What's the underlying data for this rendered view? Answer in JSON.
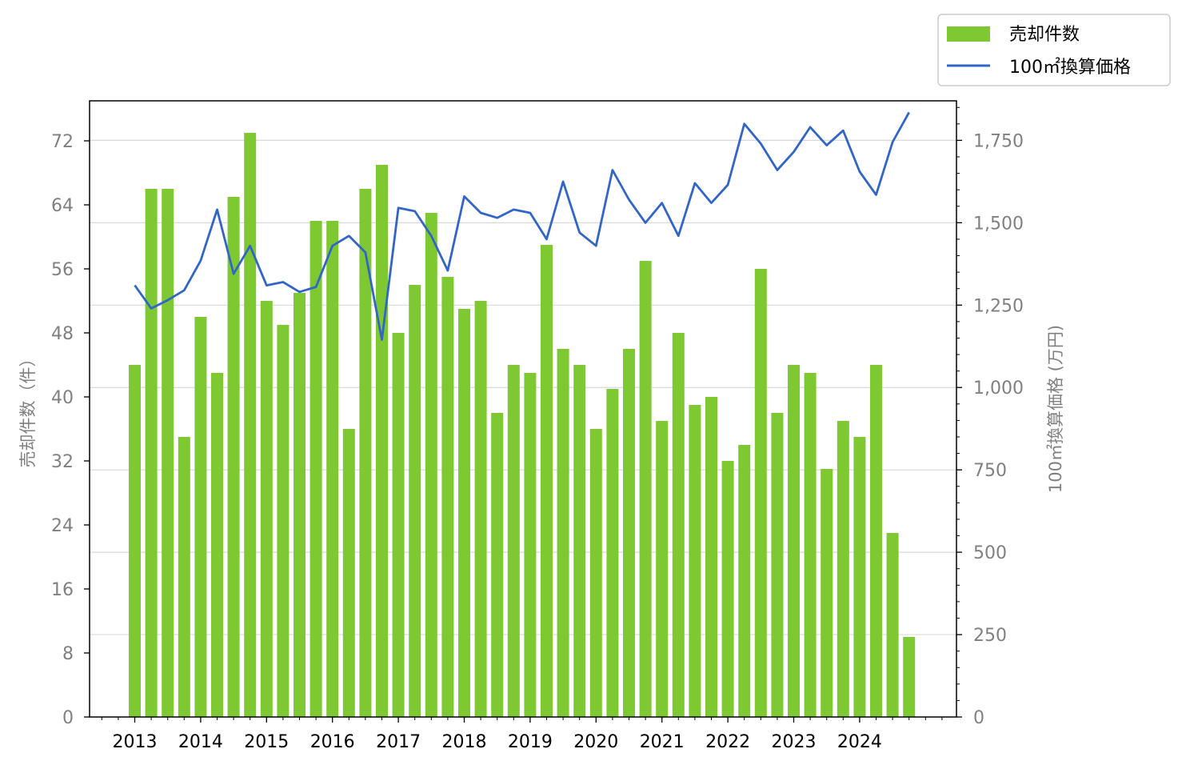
{
  "chart_data": {
    "type": "bar+line",
    "title": "",
    "x_ticks": [
      "2013",
      "2014",
      "2015",
      "2016",
      "2017",
      "2018",
      "2019",
      "2020",
      "2021",
      "2022",
      "2023",
      "2024"
    ],
    "ylabel_left": "売却件数（件）",
    "ylabel_right": "100㎡換算価格 (万円)",
    "ylim_left": [
      0,
      77
    ],
    "ylim_right": [
      0,
      1870
    ],
    "yticks_left": [
      "0",
      "8",
      "16",
      "24",
      "32",
      "40",
      "48",
      "56",
      "64",
      "72"
    ],
    "yticks_right": [
      "0",
      "250",
      "500",
      "750",
      "1,000",
      "1,250",
      "1,500",
      "1,750"
    ],
    "grid": "horizontal (right axis)",
    "legend_position": "top-right, outside plot",
    "colors": {
      "bar": "#7ec832",
      "line": "#3265c8"
    },
    "series": [
      {
        "name": "売却件数",
        "type": "bar",
        "axis": "left",
        "values": [
          44,
          66,
          66,
          35,
          50,
          43,
          65,
          73,
          52,
          49,
          53,
          62,
          62,
          36,
          66,
          69,
          48,
          54,
          63,
          55,
          51,
          52,
          38,
          44,
          43,
          59,
          46,
          44,
          36,
          41,
          46,
          57,
          37,
          48,
          39,
          40,
          32,
          34,
          56,
          38,
          44,
          43,
          31,
          37,
          35,
          44,
          23,
          10
        ]
      },
      {
        "name": "100㎡換算価格",
        "type": "line",
        "axis": "right",
        "values": [
          1310,
          1240,
          1265,
          1295,
          1385,
          1540,
          1345,
          1430,
          1310,
          1320,
          1290,
          1305,
          1430,
          1460,
          1410,
          1145,
          1545,
          1535,
          1460,
          1355,
          1580,
          1530,
          1515,
          1540,
          1530,
          1450,
          1625,
          1470,
          1430,
          1660,
          1570,
          1500,
          1560,
          1460,
          1620,
          1560,
          1615,
          1800,
          1740,
          1660,
          1715,
          1790,
          1735,
          1780,
          1655,
          1585,
          1745,
          1835
        ]
      }
    ]
  }
}
